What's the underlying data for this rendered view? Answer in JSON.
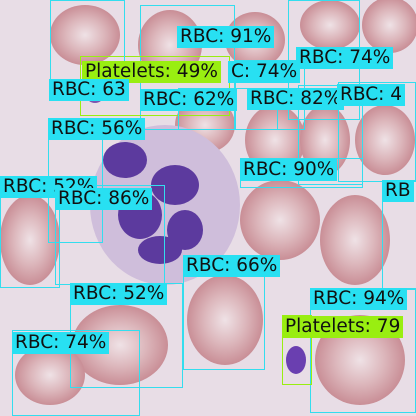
{
  "colors": {
    "rbc": "#33ddee",
    "platelets": "#99ee11",
    "background": "#e8dde6",
    "cell": "#d9a9a9",
    "nucleus": "#5c3a9e"
  },
  "detections": [
    {
      "text": "RBC: 91%",
      "cls": "rbc"
    },
    {
      "text": "RBC: 74%",
      "cls": "rbc"
    },
    {
      "text": "Platelets: 49%",
      "cls": "plt"
    },
    {
      "text": "C: 74%",
      "cls": "rbc"
    },
    {
      "text": "RBC: 63",
      "cls": "rbc"
    },
    {
      "text": "RBC: 62%",
      "cls": "rbc"
    },
    {
      "text": "RBC: 82%",
      "cls": "rbc"
    },
    {
      "text": "RBC: 4",
      "cls": "rbc"
    },
    {
      "text": "RBC: 56%",
      "cls": "rbc"
    },
    {
      "text": "RBC: 90%",
      "cls": "rbc"
    },
    {
      "text": "RBC: 52%",
      "cls": "rbc"
    },
    {
      "text": "RBC: 86%",
      "cls": "rbc"
    },
    {
      "text": "RB",
      "cls": "rbc"
    },
    {
      "text": "RBC: 66%",
      "cls": "rbc"
    },
    {
      "text": "RBC: 52%",
      "cls": "rbc"
    },
    {
      "text": "RBC: 94%",
      "cls": "rbc"
    },
    {
      "text": "Platelets: 79",
      "cls": "plt"
    },
    {
      "text": "RBC: 74%",
      "cls": "rbc"
    }
  ]
}
